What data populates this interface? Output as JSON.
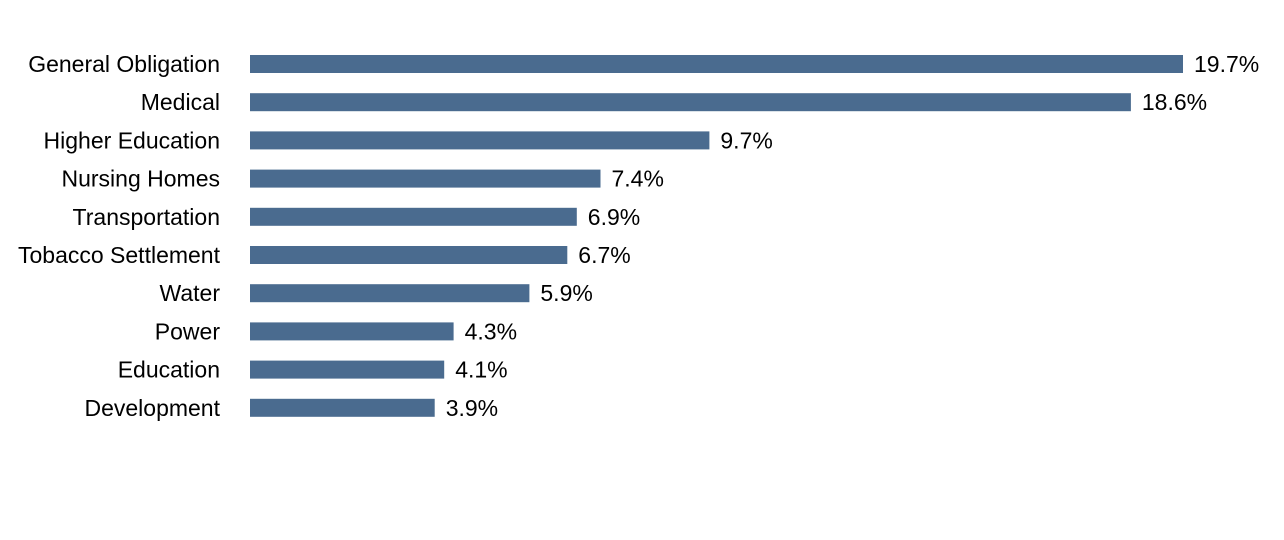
{
  "chart_data": {
    "type": "bar",
    "orientation": "horizontal",
    "categories": [
      "General Obligation",
      "Medical",
      "Higher Education",
      "Nursing Homes",
      "Transportation",
      "Tobacco Settlement",
      "Water",
      "Power",
      "Education",
      "Development"
    ],
    "values": [
      19.7,
      18.6,
      9.7,
      7.4,
      6.9,
      6.7,
      5.9,
      4.3,
      4.1,
      3.9
    ],
    "value_labels": [
      "19.7%",
      "18.6%",
      "9.7%",
      "7.4%",
      "6.9%",
      "6.7%",
      "5.9%",
      "4.3%",
      "4.1%",
      "3.9%"
    ],
    "xlim": [
      0,
      19.7
    ],
    "bar_color": "#4a6b8f",
    "grid": false,
    "legend": "none"
  }
}
